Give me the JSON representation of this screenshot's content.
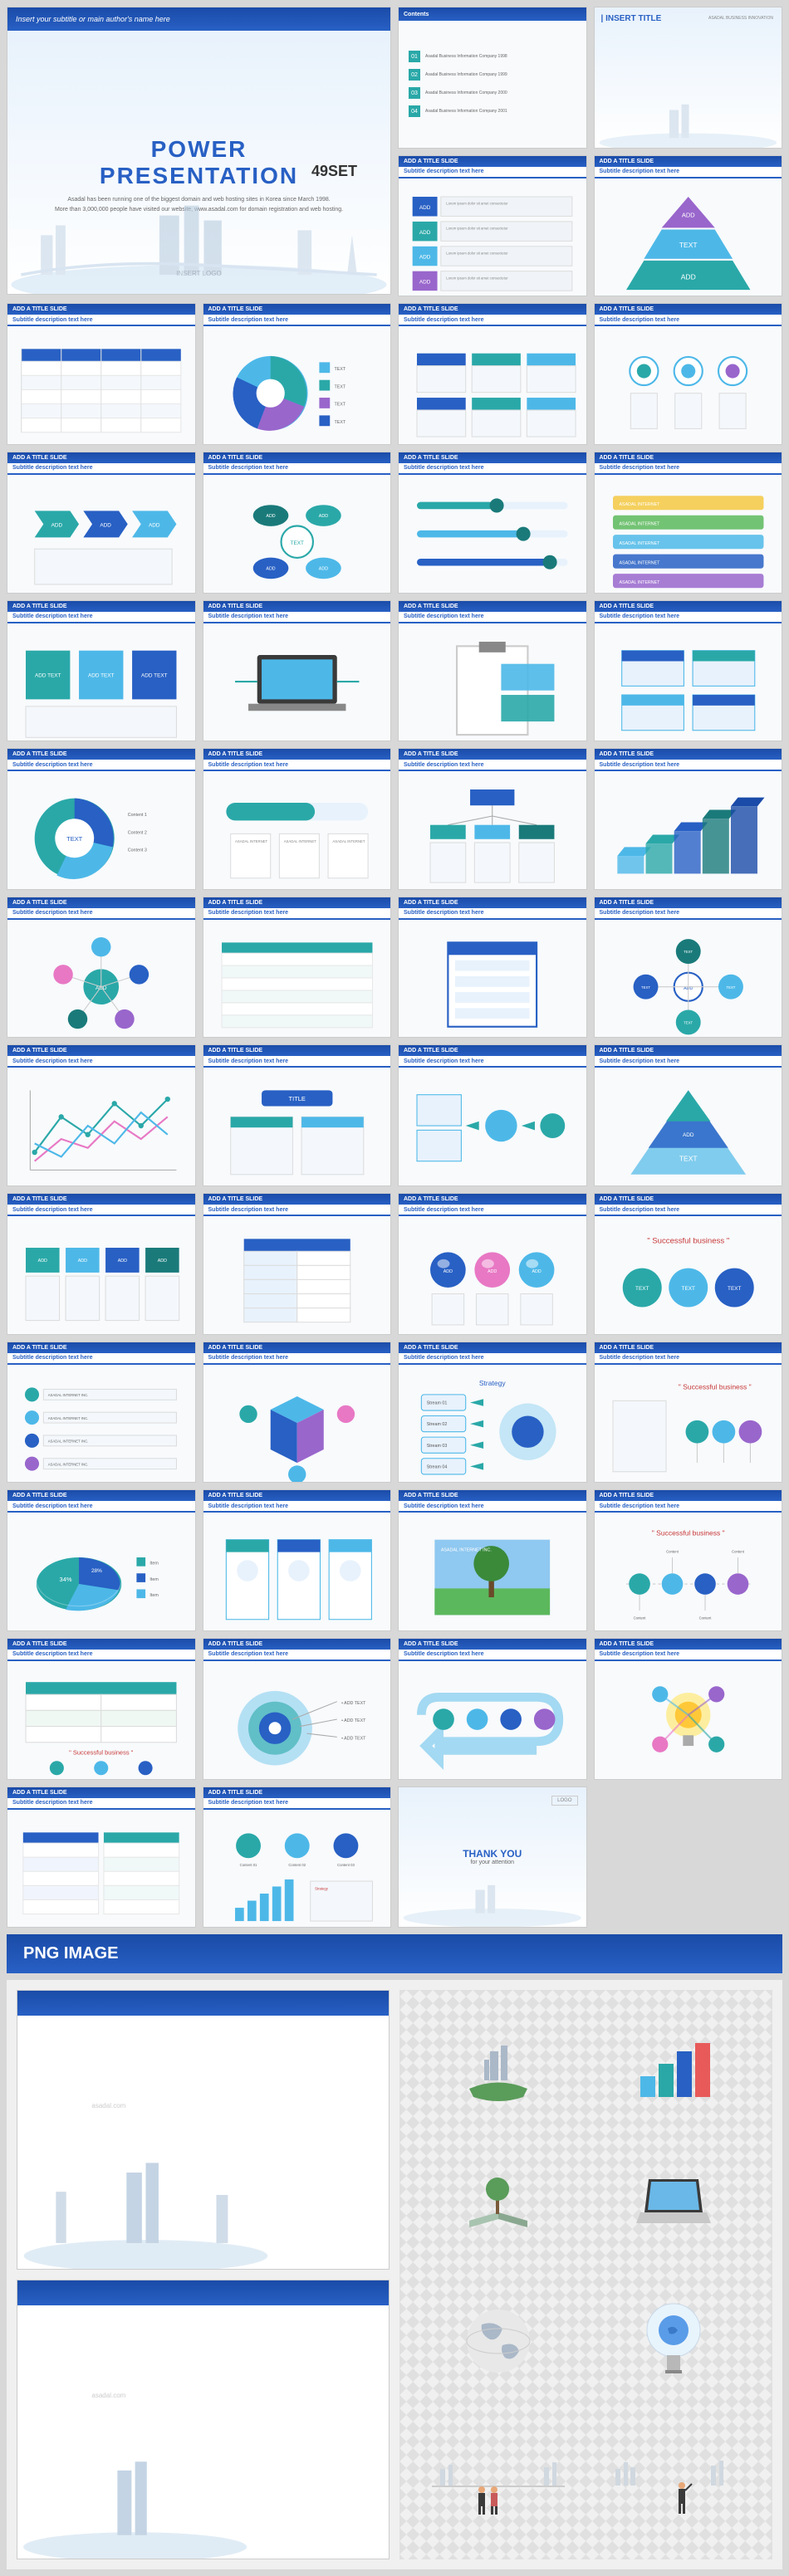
{
  "hero": {
    "subtitle_bar": "Insert your subtitle or main author's name here",
    "title_line1": "POWER",
    "title_line2": "PRESENTATION",
    "desc1": "Asadal has been running one of the biggest domain and web hosting sites in Korea since March 1998.",
    "desc2": "More than 3,000,000 people have visited our website, www.asadal.com for domain registration and web hosting.",
    "set_label": "49SET",
    "logo": "INSERT LOGO"
  },
  "colors": {
    "primary": "#2860c4",
    "primary_dark": "#1a4ba8",
    "teal": "#2aa8a8",
    "teal_dark": "#1a7a7a",
    "cyan": "#4db8e8",
    "purple": "#9966cc",
    "pink": "#e878c4",
    "green": "#5cb85c",
    "bg_light": "#e8f2fc",
    "gray": "#888888"
  },
  "slide_title_default": "ADD A TITLE SLIDE",
  "sub_default": "ADD TEXT",
  "text_label": "TEXT",
  "slides": [
    {
      "id": "contents",
      "type": "contents",
      "header": "Contents",
      "items": [
        "01",
        "02",
        "03",
        "04"
      ]
    },
    {
      "id": "insert",
      "type": "insert",
      "header": "INSERT TITLE",
      "sub": "ASADAL BUSINESS INNOVATION"
    },
    {
      "id": "s3",
      "type": "boxes-col"
    },
    {
      "id": "s4",
      "type": "pyramid"
    },
    {
      "id": "s5",
      "type": "table"
    },
    {
      "id": "s6",
      "type": "pie"
    },
    {
      "id": "s7",
      "type": "boxes-2x3"
    },
    {
      "id": "s8",
      "type": "icons-row"
    },
    {
      "id": "s9",
      "type": "arrows-3"
    },
    {
      "id": "s10",
      "type": "cycle"
    },
    {
      "id": "s11",
      "type": "lines-3"
    },
    {
      "id": "s12",
      "type": "color-bars"
    },
    {
      "id": "s13",
      "type": "boxes-row"
    },
    {
      "id": "s14",
      "type": "laptop"
    },
    {
      "id": "s15",
      "type": "clipboard"
    },
    {
      "id": "s16",
      "type": "boxes-2x2"
    },
    {
      "id": "s17",
      "type": "donut"
    },
    {
      "id": "s18",
      "type": "flow-h"
    },
    {
      "id": "s19",
      "type": "org"
    },
    {
      "id": "s20",
      "type": "steps-3d"
    },
    {
      "id": "s21",
      "type": "radial"
    },
    {
      "id": "s22",
      "type": "table-2"
    },
    {
      "id": "s23",
      "type": "window"
    },
    {
      "id": "s24",
      "type": "hub"
    },
    {
      "id": "s25",
      "type": "line-chart"
    },
    {
      "id": "s26",
      "type": "box-title"
    },
    {
      "id": "s27",
      "type": "flow-icons"
    },
    {
      "id": "s28",
      "type": "triangle"
    },
    {
      "id": "s29",
      "type": "boxes-4"
    },
    {
      "id": "s30",
      "type": "table-col"
    },
    {
      "id": "s31",
      "type": "spheres"
    },
    {
      "id": "s32",
      "type": "success",
      "accent": "Successful business"
    },
    {
      "id": "s33",
      "type": "list-lines"
    },
    {
      "id": "s34",
      "type": "cube"
    },
    {
      "id": "s35",
      "type": "strategy",
      "header2": "Strategy"
    },
    {
      "id": "s36",
      "type": "success-2",
      "accent": "Successful business"
    },
    {
      "id": "s37",
      "type": "pie-3d"
    },
    {
      "id": "s38",
      "type": "panels-3"
    },
    {
      "id": "s39",
      "type": "tree-img"
    },
    {
      "id": "s40",
      "type": "success-3",
      "accent": "Successful business"
    },
    {
      "id": "s41",
      "type": "table-green"
    },
    {
      "id": "s42",
      "type": "target"
    },
    {
      "id": "s43",
      "type": "process-arrow"
    },
    {
      "id": "s44",
      "type": "bulb"
    },
    {
      "id": "s45",
      "type": "table-compare"
    },
    {
      "id": "s46",
      "type": "bars-icons"
    },
    {
      "id": "s47",
      "type": "thanks",
      "title": "THANK YOU",
      "sub": "for your attention",
      "logo": "LOGO"
    }
  ],
  "png_section": {
    "banner": "PNG IMAGE",
    "items": [
      "island-city",
      "bar-chart",
      "book-tree",
      "laptop-3d",
      "globe",
      "bulb-globe",
      "people-1",
      "people-2"
    ]
  },
  "watermark": "asadal.com"
}
